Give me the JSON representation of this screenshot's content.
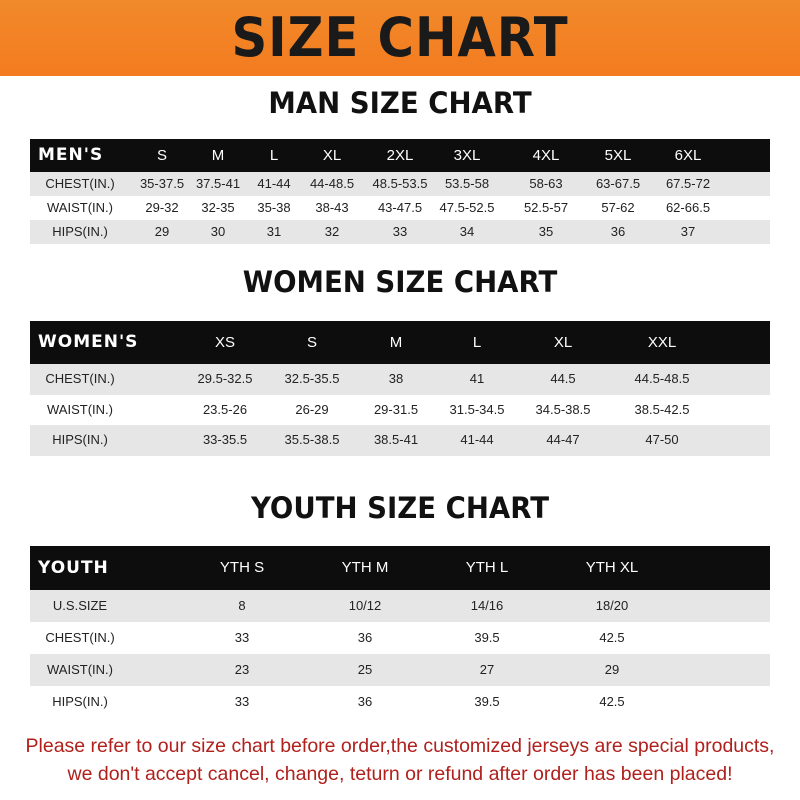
{
  "title": "SIZE CHART",
  "men": {
    "title": "MAN SIZE CHART",
    "header": [
      "MEN'S",
      "S",
      "M",
      "L",
      "XL",
      "2XL",
      "3XL",
      "4XL",
      "5XL",
      "6XL"
    ],
    "rows": [
      [
        "CHEST(IN.)",
        "35-37.5",
        "37.5-41",
        "41-44",
        "44-48.5",
        "48.5-53.5",
        "53.5-58",
        "58-63",
        "63-67.5",
        "67.5-72"
      ],
      [
        "WAIST(IN.)",
        "29-32",
        "32-35",
        "35-38",
        "38-43",
        "43-47.5",
        "47.5-52.5",
        "52.5-57",
        "57-62",
        "62-66.5"
      ],
      [
        "HIPS(IN.)",
        "29",
        "30",
        "31",
        "32",
        "33",
        "34",
        "35",
        "36",
        "37"
      ]
    ]
  },
  "women": {
    "title": "WOMEN SIZE CHART",
    "header": [
      "WOMEN'S",
      "XS",
      "S",
      "M",
      "L",
      "XL",
      "XXL"
    ],
    "rows": [
      [
        "CHEST(IN.)",
        "29.5-32.5",
        "32.5-35.5",
        "38",
        "41",
        "44.5",
        "44.5-48.5"
      ],
      [
        "WAIST(IN.)",
        "23.5-26",
        "26-29",
        "29-31.5",
        "31.5-34.5",
        "34.5-38.5",
        "38.5-42.5"
      ],
      [
        "HIPS(IN.)",
        "33-35.5",
        "35.5-38.5",
        "38.5-41",
        "41-44",
        "44-47",
        "47-50"
      ]
    ]
  },
  "youth": {
    "title": "YOUTH SIZE CHART",
    "header": [
      "YOUTH",
      "YTH S",
      "YTH M",
      "YTH L",
      "YTH XL"
    ],
    "rows": [
      [
        "U.S.SIZE",
        "8",
        "10/12",
        "14/16",
        "18/20"
      ],
      [
        "CHEST(IN.)",
        "33",
        "36",
        "39.5",
        "42.5"
      ],
      [
        "WAIST(IN.)",
        "23",
        "25",
        "27",
        "29"
      ],
      [
        "HIPS(IN.)",
        "33",
        "36",
        "39.5",
        "42.5"
      ]
    ]
  },
  "footer": {
    "line1": "Please refer to our size chart before order,the customized jerseys are special products,",
    "line2": "we don't accept cancel, change, teturn or refund after order has been placed!"
  }
}
